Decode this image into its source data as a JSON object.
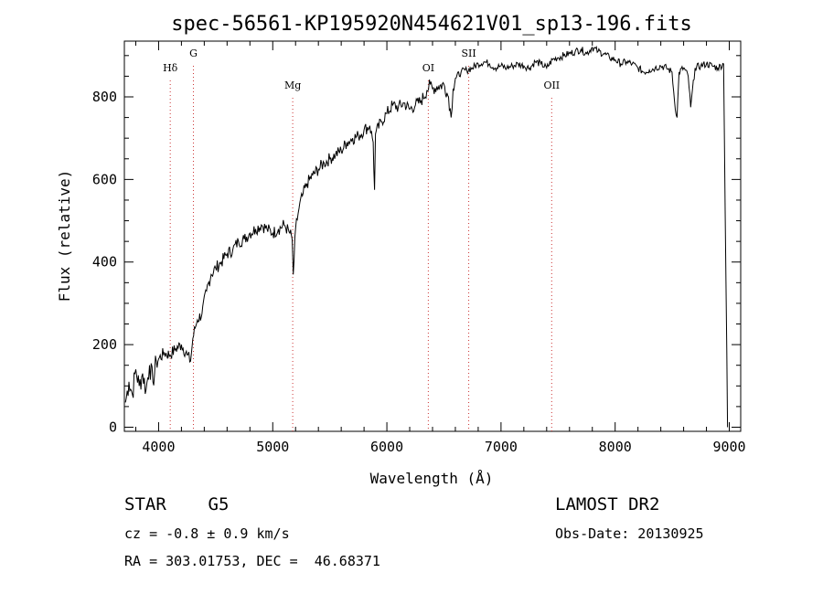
{
  "chart_data": {
    "type": "line",
    "title": "spec-56561-KP195920N454621V01_sp13-196.fits",
    "xlabel": "Wavelength (Å)",
    "ylabel": "Flux (relative)",
    "xlim": [
      3700,
      9100
    ],
    "ylim": [
      -10,
      935
    ],
    "x_ticks": [
      4000,
      5000,
      6000,
      7000,
      8000,
      9000
    ],
    "y_ticks": [
      0,
      200,
      400,
      600,
      800
    ],
    "grid": false,
    "line_color": "#000000",
    "marker_color": "#cc3333",
    "series": [
      {
        "x": [
          3710,
          3740,
          3770,
          3800,
          3830,
          3860,
          3890,
          3920,
          3950,
          3980,
          4000,
          4050,
          4100,
          4150,
          4200,
          4250,
          4280,
          4300,
          4320,
          4340,
          4380,
          4420,
          4460,
          4500,
          4550,
          4600,
          4650,
          4700,
          4750,
          4800,
          4850,
          4900,
          4950,
          5000,
          5050,
          5100,
          5150,
          5170,
          5180,
          5200,
          5230,
          5260,
          5300,
          5350,
          5400,
          5450,
          5500,
          5550,
          5600,
          5650,
          5700,
          5750,
          5800,
          5850,
          5880,
          5892,
          5900,
          5950,
          6000,
          6050,
          6100,
          6150,
          6200,
          6250,
          6300,
          6350,
          6380,
          6400,
          6450,
          6500,
          6540,
          6563,
          6580,
          6600,
          6650,
          6700,
          6750,
          6800,
          6850,
          6900,
          6950,
          7000,
          7050,
          7100,
          7150,
          7200,
          7250,
          7300,
          7350,
          7400,
          7450,
          7500,
          7550,
          7600,
          7650,
          7700,
          7750,
          7800,
          7850,
          7900,
          7950,
          8000,
          8050,
          8100,
          8150,
          8200,
          8250,
          8300,
          8350,
          8400,
          8450,
          8498,
          8520,
          8542,
          8560,
          8600,
          8640,
          8662,
          8700,
          8750,
          8800,
          8850,
          8900,
          8950,
          8985
        ],
        "y": [
          60,
          110,
          80,
          140,
          100,
          130,
          90,
          150,
          110,
          160,
          165,
          180,
          175,
          190,
          200,
          175,
          160,
          215,
          240,
          260,
          275,
          330,
          370,
          385,
          400,
          420,
          430,
          450,
          455,
          470,
          480,
          490,
          480,
          470,
          480,
          490,
          470,
          455,
          370,
          480,
          530,
          560,
          590,
          610,
          625,
          640,
          650,
          660,
          670,
          690,
          700,
          705,
          720,
          730,
          690,
          575,
          710,
          740,
          760,
          780,
          775,
          785,
          770,
          780,
          790,
          815,
          830,
          820,
          825,
          830,
          800,
          750,
          820,
          845,
          860,
          865,
          870,
          880,
          885,
          880,
          870,
          875,
          870,
          875,
          880,
          875,
          870,
          885,
          880,
          870,
          890,
          895,
          900,
          905,
          910,
          915,
          905,
          920,
          910,
          905,
          895,
          890,
          880,
          885,
          880,
          870,
          860,
          865,
          870,
          875,
          870,
          860,
          790,
          750,
          860,
          870,
          850,
          775,
          870,
          875,
          880,
          875,
          870,
          880,
          0
        ]
      }
    ],
    "line_markers": [
      {
        "label": "Hδ",
        "x": 4102,
        "label_level": 1
      },
      {
        "label": "G",
        "x": 4305,
        "label_level": 0
      },
      {
        "label": "Mg",
        "x": 5175,
        "label_level": 2
      },
      {
        "label": "OI",
        "x": 6363,
        "label_level": 1
      },
      {
        "label": "SII",
        "x": 6717,
        "label_level": 0
      },
      {
        "label": "OII",
        "x": 7444,
        "label_level": 2
      }
    ]
  },
  "info": {
    "class_line": "STAR    G5",
    "cz_line": "cz = -0.8 ± 0.9 km/s",
    "coord_line": "RA = 303.01753, DEC =  46.68371",
    "survey": "LAMOST DR2",
    "obs_date": "Obs-Date: 20130925"
  }
}
